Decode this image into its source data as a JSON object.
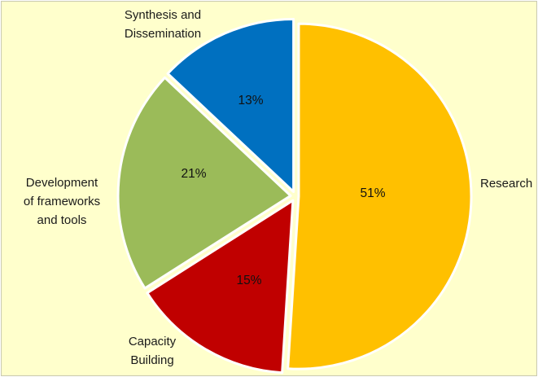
{
  "chart_data": {
    "type": "pie",
    "slices": [
      {
        "label": "Research",
        "value": 51,
        "display": "51%",
        "color": "#ffc000"
      },
      {
        "label": "Capacity Building",
        "value": 15,
        "display": "15%",
        "color": "#c00000"
      },
      {
        "label": "Development of frameworks and tools",
        "value": 21,
        "display": "21%",
        "color": "#9bbb59"
      },
      {
        "label": "Synthesis and Dissemination",
        "value": 13,
        "display": "13%",
        "color": "#0070c0"
      }
    ],
    "category_label_lines": [
      [
        "Research"
      ],
      [
        "Capacity",
        "Building"
      ],
      [
        "Development",
        "of frameworks",
        "and tools"
      ],
      [
        "Synthesis and",
        "Dissemination"
      ]
    ],
    "background": "#ffffcc",
    "slice_border": "#ffffff"
  }
}
